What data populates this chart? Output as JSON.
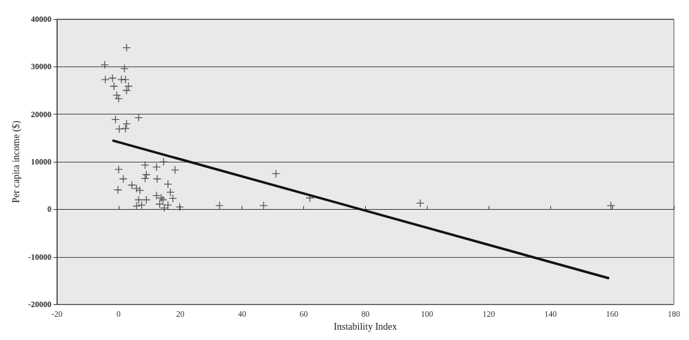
{
  "chart_data": {
    "type": "scatter",
    "xlabel": "Instability Index",
    "ylabel": "Per capita income ($)",
    "marker": "cross",
    "grid": "y",
    "xlim": [
      -20,
      180
    ],
    "xticks": [
      -20,
      0,
      20,
      40,
      60,
      80,
      100,
      120,
      140,
      160,
      180
    ],
    "ylim": [
      -20000,
      40000
    ],
    "yticks": [
      -20000,
      -10000,
      0,
      10000,
      20000,
      30000,
      40000
    ],
    "series": [
      {
        "color": "#333333",
        "x": [
          2.6,
          -4.5,
          1.9,
          -4.3,
          -2,
          0.9,
          2.2,
          -1.5,
          3.2,
          2.6,
          -0.6,
          0,
          6.5,
          -1,
          2.6,
          2.2,
          0.2,
          0,
          8.6,
          12.3,
          14.6,
          18.3,
          9,
          8.6,
          12.5,
          1.5,
          4.3,
          16,
          5.8,
          6.9,
          -0.2,
          16.8,
          12.3,
          9,
          13.8,
          6.5,
          17.6,
          14.4,
          5.8,
          16,
          7.5,
          19.8,
          14.8,
          13.3,
          51,
          32.7,
          47,
          62,
          97.8,
          159.6
        ],
        "values": [
          34000,
          30400,
          29600,
          27300,
          27600,
          27300,
          27300,
          25900,
          25900,
          25000,
          24000,
          23300,
          19300,
          18900,
          18000,
          17000,
          16900,
          8400,
          9300,
          8900,
          10000,
          8300,
          7300,
          6500,
          6400,
          6400,
          5100,
          5300,
          4400,
          4000,
          4100,
          3600,
          2900,
          2000,
          2400,
          2000,
          2300,
          2000,
          700,
          900,
          900,
          500,
          300,
          1100,
          7500,
          800,
          800,
          2400,
          1300,
          800
        ]
      },
      {
        "type": "line",
        "color": "#111111",
        "marker": "none",
        "x": [
          -2,
          159
        ],
        "values": [
          14500,
          -14500
        ]
      }
    ]
  }
}
